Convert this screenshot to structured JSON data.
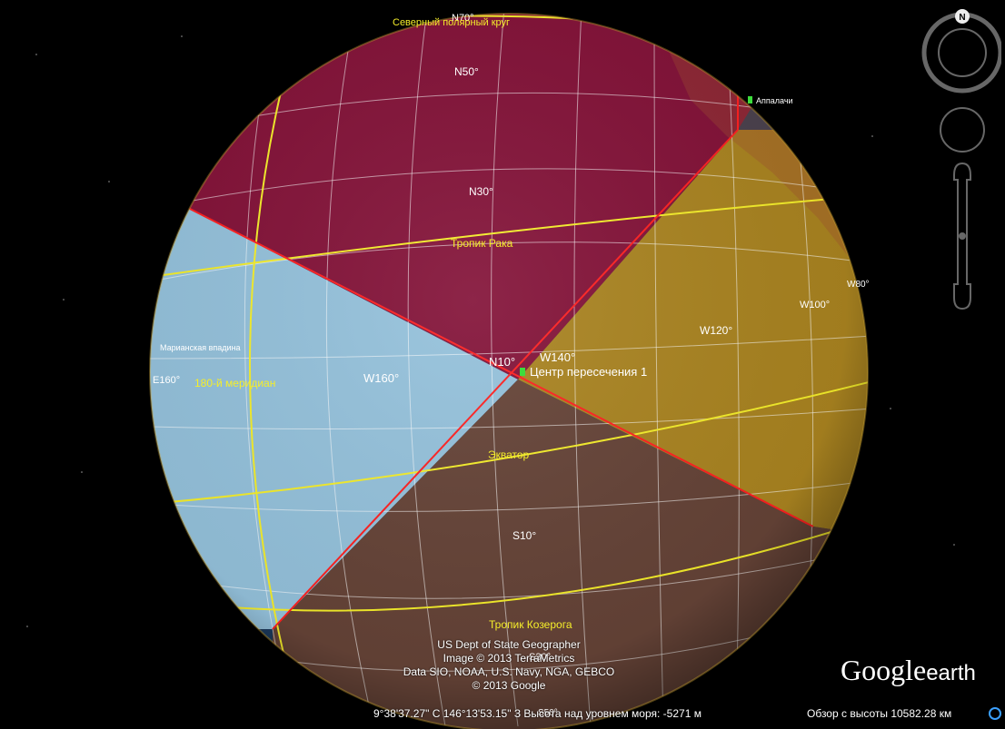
{
  "app": {
    "name": "Google Earth"
  },
  "map": {
    "parallels": [
      "N70°",
      "N50°",
      "N30°",
      "N10°",
      "S10°",
      "S30°",
      "S50°"
    ],
    "meridians": [
      "E160°",
      "W160°",
      "W140°",
      "W120°",
      "W100°",
      "W80°"
    ],
    "special_lines": {
      "arctic_circle": "Северный полярный круг",
      "tropic_cancer": "Тропик Рака",
      "equator": "Экватор",
      "tropic_capricorn": "Тропик Козерога",
      "meridian_180": "180-й меридиан"
    },
    "placemarks": {
      "center": "Центр пересечения 1",
      "appalachians": "Аппалачи",
      "mariana": "Марианская впадина"
    },
    "colors": {
      "nw_quadrant": "#8c0f35",
      "ne_quadrant": "#c89414",
      "sw_quadrant": "#9ecde6",
      "se_quadrant": "#6b4434",
      "boundary": "#ff2020",
      "graticule": "#ffffff",
      "special_line": "#f5ee2a"
    }
  },
  "attribution": [
    "US Dept of State Geographer",
    "Image © 2013 TerraMetrics",
    "Data SIO, NOAA, U.S. Navy, NGA, GEBCO",
    "© 2013 Google"
  ],
  "logo": {
    "google": "Google",
    "earth": "earth"
  },
  "status_bar": {
    "coords": "9°38'37.27\" С  146°13'53.15\" З  Высота над уровнем моря: -5271 м",
    "eye_alt": "Обзор с высоты 10582.28 км"
  },
  "nav": {
    "north": "N"
  }
}
